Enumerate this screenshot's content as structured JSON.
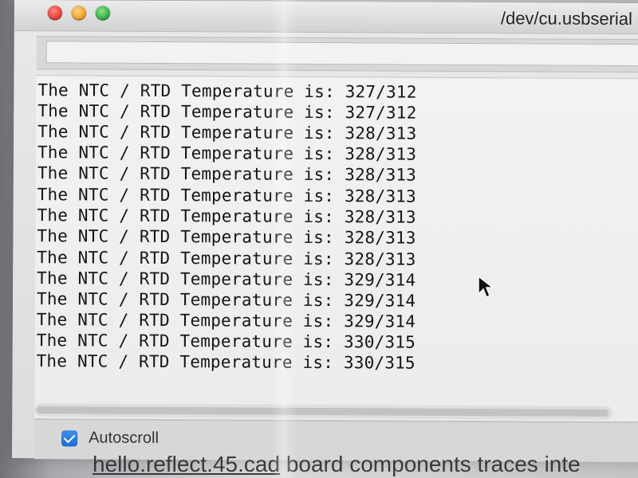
{
  "window": {
    "title": "/dev/cu.usbserial"
  },
  "input": {
    "value": ""
  },
  "console": {
    "lines": [
      "The NTC / RTD Temperature is: 327/312",
      "The NTC / RTD Temperature is: 327/312",
      "The NTC / RTD Temperature is: 328/313",
      "The NTC / RTD Temperature is: 328/313",
      "The NTC / RTD Temperature is: 328/313",
      "The NTC / RTD Temperature is: 328/313",
      "The NTC / RTD Temperature is: 328/313",
      "The NTC / RTD Temperature is: 328/313",
      "The NTC / RTD Temperature is: 328/313",
      "The NTC / RTD Temperature is: 329/314",
      "The NTC / RTD Temperature is: 329/314",
      "The NTC / RTD Temperature is: 329/314",
      "The NTC / RTD Temperature is: 330/315",
      "The NTC / RTD Temperature is: 330/315"
    ]
  },
  "footer": {
    "autoscroll_label": "Autoscroll",
    "autoscroll_checked": true
  },
  "background_text": {
    "part1": "hello.reflect.45.cad",
    "part2": " board components traces inte"
  },
  "colors": {
    "autoscroll_blue": "#1c6dd8",
    "close_red": "#f0443c",
    "minimize_yellow": "#f3a42b",
    "maximize_green": "#39b54a"
  }
}
